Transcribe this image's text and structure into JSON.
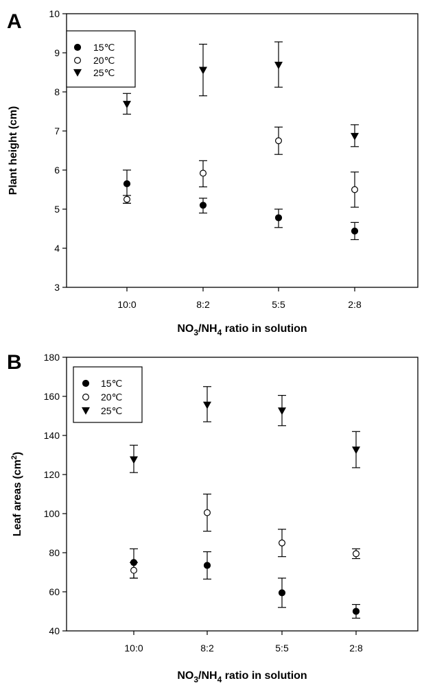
{
  "chart_data": [
    {
      "panel_label": "A",
      "type": "scatter",
      "categories": [
        "10:0",
        "8:2",
        "5:5",
        "2:8"
      ],
      "ylabel": "Plant height (cm)",
      "xlabel": {
        "base": "NO",
        "sub1": "3",
        "mid": "/NH",
        "sub2": "4",
        "tail": " ratio in solution"
      },
      "ylim": [
        3,
        10
      ],
      "yticks": [
        3,
        4,
        5,
        6,
        7,
        8,
        9,
        10
      ],
      "grid": false,
      "legend_position": "top-left",
      "series": [
        {
          "name": "15℃",
          "marker": "filled-circle",
          "values": [
            5.65,
            5.1,
            4.78,
            4.44
          ],
          "err_low": [
            0.5,
            0.2,
            0.25,
            0.22
          ],
          "err_high": [
            0.35,
            0.18,
            0.22,
            0.22
          ]
        },
        {
          "name": "20℃",
          "marker": "open-circle",
          "values": [
            5.25,
            5.92,
            6.75,
            5.5
          ],
          "err_low": [
            0.1,
            0.35,
            0.35,
            0.45
          ],
          "err_high": [
            0.1,
            0.32,
            0.35,
            0.45
          ]
        },
        {
          "name": "25℃",
          "marker": "filled-triangle-down",
          "values": [
            7.68,
            8.55,
            8.68,
            6.86
          ],
          "err_low": [
            0.25,
            0.65,
            0.56,
            0.26
          ],
          "err_high": [
            0.28,
            0.67,
            0.6,
            0.3
          ]
        }
      ]
    },
    {
      "panel_label": "B",
      "type": "scatter",
      "categories": [
        "10:0",
        "8:2",
        "5:5",
        "2:8"
      ],
      "ylabel": {
        "base": "Leaf areas (cm",
        "sup": "2",
        "tail": ")"
      },
      "xlabel": {
        "base": "NO",
        "sub1": "3",
        "mid": "/NH",
        "sub2": "4",
        "tail": " ratio in solution"
      },
      "ylim": [
        40,
        180
      ],
      "yticks": [
        40,
        60,
        80,
        100,
        120,
        140,
        160,
        180
      ],
      "grid": false,
      "legend_position": "top-left",
      "series": [
        {
          "name": "15℃",
          "marker": "filled-circle",
          "values": [
            75,
            73.5,
            59.5,
            50
          ],
          "err_low": [
            8,
            7,
            7.5,
            3.5
          ],
          "err_high": [
            7,
            7,
            7.5,
            3.5
          ]
        },
        {
          "name": "20℃",
          "marker": "open-circle",
          "values": [
            71,
            100.5,
            85,
            79.5
          ],
          "err_low": [
            4,
            9.5,
            7,
            2.5
          ],
          "err_high": [
            4,
            9.5,
            7,
            2.5
          ]
        },
        {
          "name": "25℃",
          "marker": "filled-triangle-down",
          "values": [
            127.5,
            155.5,
            152.5,
            132.5
          ],
          "err_low": [
            6.5,
            8.5,
            7.5,
            9
          ],
          "err_high": [
            7.5,
            9.5,
            8,
            9.5
          ]
        }
      ]
    }
  ]
}
